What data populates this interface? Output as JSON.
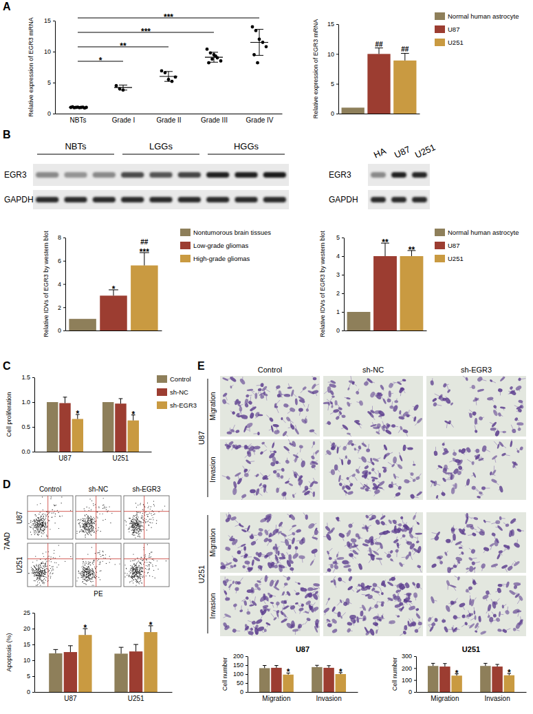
{
  "figure": {
    "panel_labels": [
      "A",
      "B",
      "C",
      "D",
      "E"
    ],
    "blot_left": {
      "groups": [
        "NBTs",
        "LGGs",
        "HGGs"
      ],
      "rows": [
        "EGR3",
        "GAPDH"
      ]
    },
    "blot_right": {
      "lanes": [
        "HA",
        "U87",
        "U251"
      ],
      "rows": [
        "EGR3",
        "GAPDH"
      ]
    },
    "flow": {
      "columns": [
        "Control",
        "sh-NC",
        "sh-EGR3"
      ],
      "rows": [
        "U87",
        "U251"
      ],
      "x_label": "PE",
      "y_label": "7AAD"
    },
    "micrographs": {
      "columns": [
        "Control",
        "sh-NC",
        "sh-EGR3"
      ],
      "rows": [
        "U87",
        "U251"
      ],
      "assays": [
        "Migration",
        "Invasion"
      ]
    }
  },
  "chart_data": [
    {
      "type": "dot",
      "y_label": "Relative expression of EGR3 mRNA",
      "categories": [
        "NBTs",
        "Grade I",
        "Grade II",
        "Grade III",
        "Grade IV"
      ],
      "points": [
        [
          1.0,
          0.95,
          1.05,
          1.0,
          0.9,
          1.1,
          1.0,
          0.95,
          1.05,
          1.0
        ],
        [
          4.5,
          4.0,
          3.8
        ],
        [
          6.9,
          6.6,
          5.5,
          5.2,
          5.9
        ],
        [
          10.4,
          9.8,
          9.5,
          9.0,
          8.5,
          8.2,
          8.8,
          9.3
        ],
        [
          14.0,
          13.4,
          12.0,
          11.5,
          10.8,
          9.5,
          8.2
        ]
      ],
      "mean": [
        1.0,
        4.2,
        6.0,
        9.1,
        11.5
      ],
      "sd": [
        0.1,
        0.4,
        0.8,
        0.8,
        2.1
      ],
      "significance": [
        null,
        "*",
        "**",
        "***",
        "***"
      ],
      "ylim": [
        0,
        15
      ],
      "yticks": [
        0,
        5,
        10,
        15
      ],
      "color": "#000000",
      "marker": "circle"
    },
    {
      "type": "bar",
      "y_label": "Relative expression of EGR3 mRNA",
      "categories": [
        "Normal human astrocyte",
        "U87",
        "U251"
      ],
      "values": [
        1,
        10,
        8.9
      ],
      "errors": [
        null,
        1.0,
        1.2
      ],
      "colors": [
        "#8e7f5a",
        "#9c3d31",
        "#c99a41"
      ],
      "annotations": [
        [],
        [
          "##"
        ],
        [
          "##"
        ]
      ],
      "ylim": [
        0,
        15
      ],
      "yticks": [
        0,
        5,
        10,
        15
      ],
      "legend": "right",
      "tick_labels": "y"
    },
    {
      "type": "bar",
      "y_label": "Relative IDVs of EGR3 by western blot",
      "categories": [
        "Nontumorous brain tissues",
        "Low-grade gliomas",
        "High-grade gliomas"
      ],
      "values": [
        1,
        3,
        5.6
      ],
      "errors": [
        null,
        0.5,
        1.1
      ],
      "colors": [
        "#8e7f5a",
        "#9c3d31",
        "#c99a41"
      ],
      "annotations": [
        [],
        [
          "*"
        ],
        [
          "***",
          "##"
        ]
      ],
      "ylim": [
        0,
        8
      ],
      "yticks": [
        0,
        2,
        4,
        6,
        8
      ],
      "legend": "right",
      "tick_labels": "y"
    },
    {
      "type": "bar",
      "y_label": "Relative IDVs of EGR3 by western blot",
      "categories": [
        "Normal human astrocyte",
        "U87",
        "U251"
      ],
      "values": [
        1,
        4,
        4
      ],
      "errors": [
        null,
        0.7,
        0.3
      ],
      "colors": [
        "#8e7f5a",
        "#9c3d31",
        "#c99a41"
      ],
      "annotations": [
        [],
        [
          "**"
        ],
        [
          "**"
        ]
      ],
      "ylim": [
        0,
        5
      ],
      "yticks": [
        0,
        1,
        2,
        3,
        4,
        5
      ],
      "legend": "right",
      "tick_labels": "y"
    },
    {
      "type": "bar",
      "y_label": "Cell proliferation",
      "categories": [
        "U87",
        "U251"
      ],
      "series": [
        {
          "name": "Control",
          "color": "#8e7f5a",
          "values": [
            1,
            1
          ]
        },
        {
          "name": "sh-NC",
          "color": "#9c3d31",
          "values": [
            0.98,
            0.97
          ],
          "errors": [
            0.12,
            0.1
          ]
        },
        {
          "name": "sh-EGR3",
          "color": "#c99a41",
          "values": [
            0.66,
            0.63
          ],
          "errors": [
            0.09,
            0.11
          ],
          "annotations": [
            "*",
            "*"
          ]
        }
      ],
      "ylim": [
        0,
        1.5
      ],
      "yticks": [
        {
          "value": 0,
          "label": "0.0"
        },
        {
          "value": 0.5,
          "label": "0.5"
        },
        {
          "value": 1,
          "label": "1.0"
        },
        {
          "value": 1.5,
          "label": "1.5"
        }
      ],
      "legend": "right"
    },
    {
      "type": "bar",
      "y_label": "Apoptosis (%)",
      "categories": [
        "U87",
        "U251"
      ],
      "series": [
        {
          "color": "#8e7f5a",
          "values": [
            12.2,
            12.1
          ],
          "errors": [
            1.2,
            2.0
          ]
        },
        {
          "color": "#9c3d31",
          "values": [
            12.6,
            12.8
          ],
          "errors": [
            2.0,
            2.2
          ]
        },
        {
          "color": "#c99a41",
          "values": [
            18.0,
            18.9
          ],
          "errors": [
            2.0,
            2.0
          ],
          "annotations": [
            "*",
            "*"
          ]
        }
      ],
      "ylim": [
        0,
        25
      ],
      "yticks": [
        0,
        5,
        10,
        15,
        20,
        25
      ]
    },
    {
      "type": "bar",
      "title": "U87",
      "y_label": "Cell number",
      "categories": [
        "Migration",
        "Invasion"
      ],
      "series": [
        {
          "color": "#8e7f5a",
          "values": [
            133,
            139
          ],
          "errors": [
            15,
            10
          ]
        },
        {
          "color": "#9c3d31",
          "values": [
            135,
            135
          ],
          "errors": [
            13,
            12
          ]
        },
        {
          "color": "#c99a41",
          "values": [
            97,
            100
          ],
          "errors": [
            9,
            8
          ],
          "annotations": [
            "*",
            "*"
          ]
        }
      ],
      "ylim": [
        0,
        200
      ],
      "yticks": [
        0,
        50,
        100,
        150,
        200
      ]
    },
    {
      "type": "bar",
      "title": "U251",
      "y_label": "Cell number",
      "categories": [
        "Migration",
        "Invasion"
      ],
      "series": [
        {
          "color": "#8e7f5a",
          "values": [
            218,
            218
          ],
          "errors": [
            22,
            22
          ]
        },
        {
          "color": "#9c3d31",
          "values": [
            213,
            213
          ],
          "errors": [
            25,
            18
          ]
        },
        {
          "color": "#c99a41",
          "values": [
            137,
            140
          ],
          "errors": [
            15,
            15
          ],
          "annotations": [
            "*",
            "*"
          ]
        }
      ],
      "ylim": [
        0,
        300
      ],
      "yticks": [
        0,
        100,
        200,
        300
      ]
    }
  ]
}
